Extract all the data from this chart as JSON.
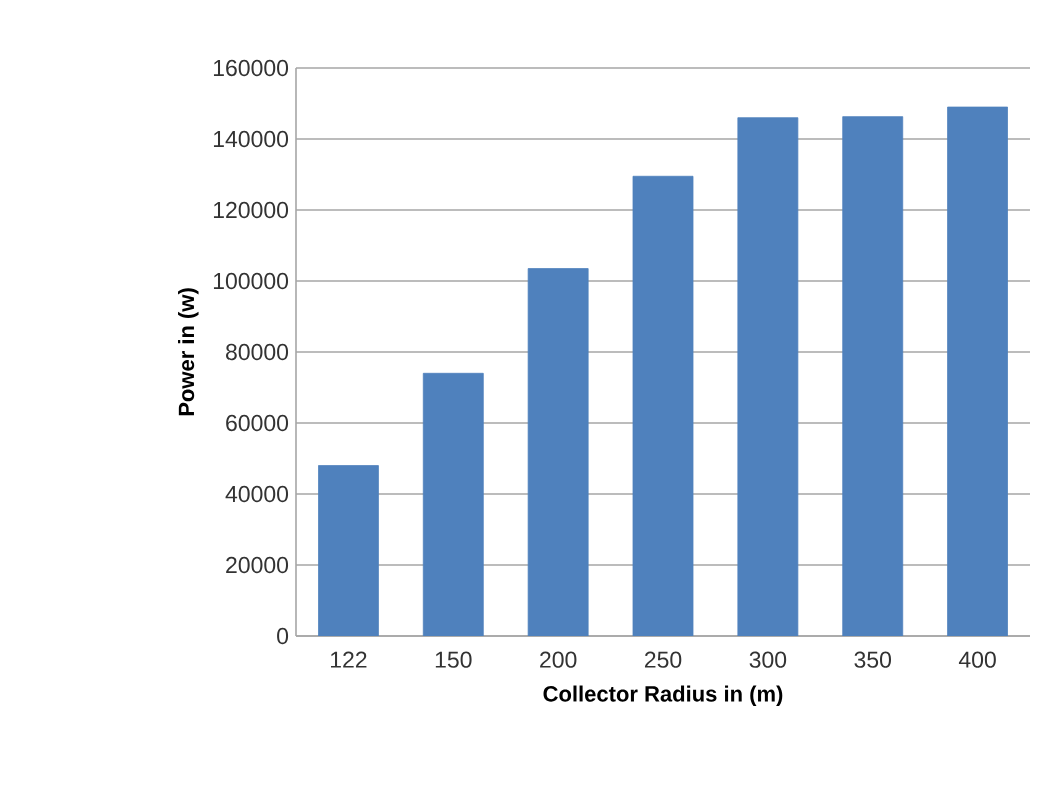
{
  "chart_data": {
    "type": "bar",
    "categories": [
      "122",
      "150",
      "200",
      "250",
      "300",
      "350",
      "400"
    ],
    "values": [
      48000,
      74000,
      103500,
      129500,
      146000,
      146300,
      149000
    ],
    "color": "#4f81bd",
    "xlabel": "Collector Radius in (m)",
    "ylabel": "Power in  (w)",
    "ylim": [
      0,
      160000
    ],
    "yticks": [
      0,
      20000,
      40000,
      60000,
      80000,
      100000,
      120000,
      140000,
      160000
    ],
    "grid": "y"
  }
}
